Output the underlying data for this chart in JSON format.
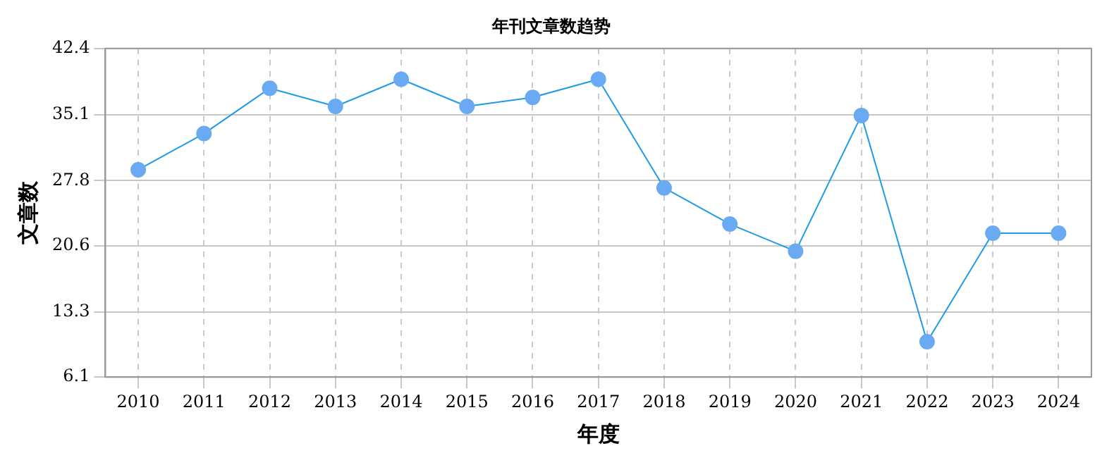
{
  "chart_data": {
    "type": "line",
    "title": "年刊文章数趋势",
    "xlabel": "年度",
    "ylabel": "文章数",
    "categories": [
      "2010",
      "2011",
      "2012",
      "2013",
      "2014",
      "2015",
      "2016",
      "2017",
      "2018",
      "2019",
      "2020",
      "2021",
      "2022",
      "2023",
      "2024"
    ],
    "series": [
      {
        "color": "#1e9be6",
        "values": [
          29,
          33,
          38,
          36,
          39,
          36,
          37,
          39,
          27,
          23,
          20,
          35,
          10,
          22,
          22
        ]
      }
    ],
    "ylim": [
      6.1,
      42.4
    ],
    "yticks": [
      6.1,
      13.3,
      20.6,
      27.8,
      35.1,
      42.4
    ],
    "grid": true,
    "marker": "circle",
    "line_style": "solid",
    "legend": false
  }
}
